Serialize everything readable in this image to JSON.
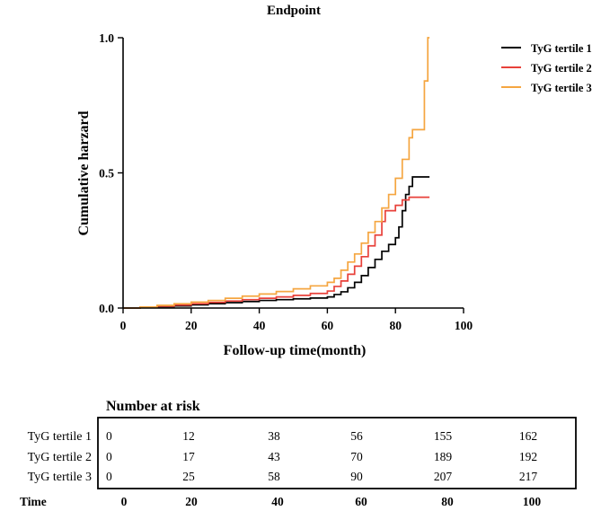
{
  "chart_data": {
    "type": "line",
    "title": "Endpoint",
    "xlabel": "Follow-up time(month)",
    "ylabel": "Cumulative harzard",
    "xlim": [
      0,
      100
    ],
    "ylim": [
      0,
      1.0
    ],
    "xticks": [
      0,
      20,
      40,
      60,
      80,
      100
    ],
    "xtick_labels": [
      "0",
      "20",
      "40",
      "60",
      "80",
      "100"
    ],
    "yticks": [
      0,
      0.5,
      1.0
    ],
    "ytick_labels": [
      "0.0",
      "0.5",
      "1.0"
    ],
    "legend_position": "top-right",
    "series": [
      {
        "name": "TyG tertile 1",
        "color": "#000000",
        "points": [
          [
            0,
            0
          ],
          [
            5,
            0.002
          ],
          [
            10,
            0.005
          ],
          [
            15,
            0.008
          ],
          [
            20,
            0.012
          ],
          [
            25,
            0.016
          ],
          [
            30,
            0.02
          ],
          [
            35,
            0.024
          ],
          [
            40,
            0.028
          ],
          [
            45,
            0.031
          ],
          [
            50,
            0.034
          ],
          [
            55,
            0.037
          ],
          [
            60,
            0.041
          ],
          [
            62,
            0.05
          ],
          [
            64,
            0.06
          ],
          [
            66,
            0.075
          ],
          [
            68,
            0.095
          ],
          [
            70,
            0.12
          ],
          [
            72,
            0.15
          ],
          [
            74,
            0.18
          ],
          [
            76,
            0.21
          ],
          [
            78,
            0.235
          ],
          [
            80,
            0.26
          ],
          [
            81,
            0.3
          ],
          [
            82,
            0.36
          ],
          [
            83,
            0.42
          ],
          [
            84,
            0.45
          ],
          [
            85,
            0.485
          ],
          [
            90,
            0.485
          ]
        ]
      },
      {
        "name": "TyG tertile 2",
        "color": "#e8413a",
        "points": [
          [
            0,
            0
          ],
          [
            5,
            0.003
          ],
          [
            10,
            0.007
          ],
          [
            15,
            0.011
          ],
          [
            20,
            0.016
          ],
          [
            25,
            0.021
          ],
          [
            30,
            0.026
          ],
          [
            35,
            0.031
          ],
          [
            40,
            0.036
          ],
          [
            45,
            0.041
          ],
          [
            50,
            0.047
          ],
          [
            55,
            0.054
          ],
          [
            60,
            0.063
          ],
          [
            62,
            0.08
          ],
          [
            64,
            0.1
          ],
          [
            66,
            0.125
          ],
          [
            68,
            0.155
          ],
          [
            70,
            0.19
          ],
          [
            72,
            0.23
          ],
          [
            74,
            0.27
          ],
          [
            76,
            0.32
          ],
          [
            77,
            0.36
          ],
          [
            80,
            0.38
          ],
          [
            82,
            0.4
          ],
          [
            84,
            0.41
          ],
          [
            90,
            0.41
          ]
        ]
      },
      {
        "name": "TyG tertile 3",
        "color": "#f5a641",
        "points": [
          [
            0,
            0
          ],
          [
            5,
            0.004
          ],
          [
            10,
            0.01
          ],
          [
            15,
            0.016
          ],
          [
            20,
            0.022
          ],
          [
            25,
            0.028
          ],
          [
            30,
            0.036
          ],
          [
            35,
            0.044
          ],
          [
            40,
            0.052
          ],
          [
            45,
            0.061
          ],
          [
            50,
            0.071
          ],
          [
            55,
            0.082
          ],
          [
            60,
            0.095
          ],
          [
            62,
            0.11
          ],
          [
            64,
            0.14
          ],
          [
            66,
            0.17
          ],
          [
            68,
            0.2
          ],
          [
            70,
            0.24
          ],
          [
            72,
            0.28
          ],
          [
            74,
            0.32
          ],
          [
            76,
            0.37
          ],
          [
            78,
            0.42
          ],
          [
            80,
            0.48
          ],
          [
            82,
            0.55
          ],
          [
            84,
            0.63
          ],
          [
            85,
            0.66
          ],
          [
            88,
            0.66
          ],
          [
            88.5,
            0.84
          ],
          [
            89,
            0.84
          ],
          [
            89.5,
            1.0
          ],
          [
            90,
            1.0
          ]
        ]
      }
    ]
  },
  "risk_table": {
    "title": "Number at risk",
    "rows": [
      {
        "label": "TyG tertile 1",
        "values": [
          "0",
          "12",
          "38",
          "56",
          "155",
          "162"
        ]
      },
      {
        "label": "TyG tertile 2",
        "values": [
          "0",
          "17",
          "43",
          "70",
          "189",
          "192"
        ]
      },
      {
        "label": "TyG tertile 3",
        "values": [
          "0",
          "25",
          "58",
          "90",
          "207",
          "217"
        ]
      }
    ],
    "time_label": "Time",
    "time_values": [
      "0",
      "20",
      "40",
      "60",
      "80",
      "100"
    ]
  }
}
